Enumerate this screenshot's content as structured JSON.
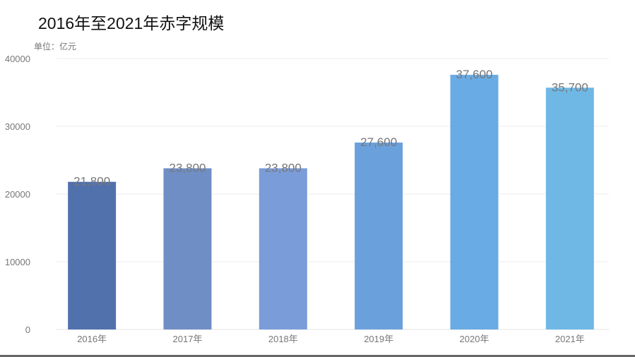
{
  "chart_data": {
    "type": "bar",
    "title": "2016年至2021年赤字规模",
    "unit_label": "单位：亿元",
    "categories": [
      "2016年",
      "2017年",
      "2018年",
      "2019年",
      "2020年",
      "2021年"
    ],
    "values": [
      21800,
      23800,
      23800,
      27600,
      37600,
      35700
    ],
    "data_labels": [
      "21,800",
      "23,800",
      "23,800",
      "27,600",
      "37,600",
      "35,700"
    ],
    "ylim": [
      0,
      40000
    ],
    "yticks": [
      0,
      10000,
      20000,
      30000,
      40000
    ],
    "grid": true,
    "colors": [
      "#5171ad",
      "#6f8ec6",
      "#7a9cd9",
      "#6aa1dc",
      "#68abe5",
      "#6fb8e6"
    ]
  }
}
